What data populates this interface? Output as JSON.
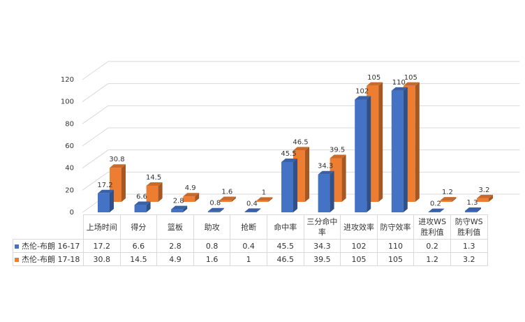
{
  "chart_data": {
    "type": "bar3d",
    "categories": [
      "上场时间",
      "得分",
      "篮板",
      "助攻",
      "抢断",
      "命中率",
      "三分命中率",
      "进攻效率",
      "防守效率",
      "进攻WS胜利值",
      "防守WS胜利值"
    ],
    "series": [
      {
        "name": "杰伦-布朗 16-17",
        "color": "#4472c4",
        "values": [
          17.2,
          6.6,
          2.8,
          0.8,
          0.4,
          45.5,
          34.3,
          102,
          110,
          0.2,
          1.3
        ]
      },
      {
        "name": "杰伦-布朗 17-18",
        "color": "#ed7d31",
        "values": [
          30.8,
          14.5,
          4.9,
          1.6,
          1,
          46.5,
          39.5,
          105,
          105,
          1.2,
          3.2
        ]
      }
    ],
    "ylim": [
      0,
      120
    ],
    "yticks": [
      0,
      20,
      40,
      60,
      80,
      100,
      120
    ],
    "grid": true,
    "data_table": true
  }
}
